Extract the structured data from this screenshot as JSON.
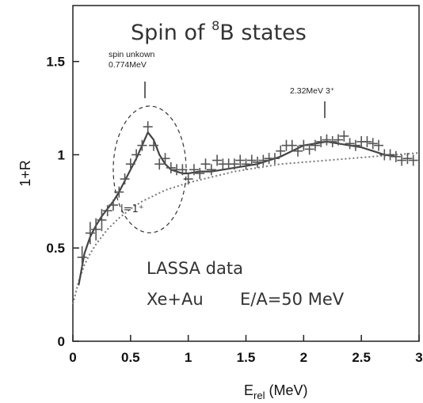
{
  "chart_data": {
    "type": "line",
    "title": "Spin of ",
    "title_sup": "8",
    "title_rest": "B states",
    "xlabel_main": "E",
    "xlabel_sub": "rel",
    "xlabel_unit": " (MeV)",
    "ylabel": "1+R",
    "xlim": [
      0,
      3
    ],
    "ylim": [
      0,
      1.8
    ],
    "xticks": [
      "0",
      "0.5",
      "1",
      "1.5",
      "2",
      "2.5",
      "3"
    ],
    "yticks": [
      "0",
      "0.5",
      "1",
      "1.5"
    ],
    "annotations": {
      "peak1_line1": "spin unkown",
      "peak1_line2": "0.774MeV",
      "peak2": "2.32MeV 3⁺",
      "l1": "l=1⁺",
      "lassa": "LASSA data",
      "reaction": "Xe+Au",
      "energy": "E/A=50 MeV"
    },
    "series": [
      {
        "style": "points",
        "x": [
          0.08,
          0.15,
          0.2,
          0.25,
          0.3,
          0.35,
          0.4,
          0.45,
          0.5,
          0.55,
          0.6,
          0.65,
          0.7,
          0.75,
          0.8,
          0.85,
          0.9,
          0.95,
          1.0,
          1.05,
          1.1,
          1.15,
          1.2,
          1.25,
          1.3,
          1.35,
          1.4,
          1.45,
          1.5,
          1.55,
          1.6,
          1.65,
          1.7,
          1.75,
          1.8,
          1.85,
          1.9,
          1.95,
          2.0,
          2.05,
          2.1,
          2.15,
          2.2,
          2.25,
          2.3,
          2.35,
          2.4,
          2.45,
          2.5,
          2.55,
          2.6,
          2.65,
          2.7,
          2.75,
          2.8,
          2.85,
          2.9,
          2.95
        ],
        "y": [
          0.45,
          0.58,
          0.6,
          0.65,
          0.7,
          0.73,
          0.8,
          0.87,
          0.95,
          1.0,
          1.05,
          1.15,
          1.05,
          0.95,
          0.98,
          0.93,
          0.92,
          0.92,
          0.87,
          0.92,
          0.9,
          0.95,
          0.92,
          0.97,
          0.95,
          0.95,
          0.95,
          0.97,
          0.95,
          0.97,
          0.96,
          0.97,
          0.98,
          0.98,
          1.02,
          1.05,
          1.05,
          1.02,
          1.05,
          1.03,
          1.05,
          1.07,
          1.08,
          1.07,
          1.08,
          1.1,
          1.06,
          1.05,
          1.07,
          1.07,
          1.06,
          1.05,
          1.0,
          1.0,
          0.99,
          0.97,
          0.98,
          0.97
        ]
      },
      {
        "style": "solid",
        "x": [
          0.05,
          0.1,
          0.15,
          0.2,
          0.25,
          0.3,
          0.35,
          0.4,
          0.45,
          0.5,
          0.55,
          0.6,
          0.65,
          0.7,
          0.75,
          0.8,
          0.85,
          0.9,
          0.95,
          1.0,
          1.1,
          1.2,
          1.3,
          1.4,
          1.5,
          1.6,
          1.7,
          1.8,
          1.9,
          2.0,
          2.1,
          2.2,
          2.3,
          2.4,
          2.5,
          2.6,
          2.7,
          2.8
        ],
        "y": [
          0.3,
          0.47,
          0.56,
          0.62,
          0.67,
          0.71,
          0.75,
          0.8,
          0.86,
          0.92,
          0.98,
          1.05,
          1.12,
          1.08,
          1.0,
          0.95,
          0.92,
          0.91,
          0.9,
          0.9,
          0.91,
          0.91,
          0.92,
          0.93,
          0.94,
          0.95,
          0.97,
          0.99,
          1.02,
          1.05,
          1.06,
          1.07,
          1.06,
          1.05,
          1.04,
          1.02,
          1.0,
          0.99
        ]
      },
      {
        "style": "dotted",
        "x": [
          0.0,
          0.05,
          0.1,
          0.15,
          0.2,
          0.3,
          0.4,
          0.5,
          0.6,
          0.7,
          0.8,
          0.9,
          1.0,
          1.2,
          1.4,
          1.6,
          1.8,
          2.0,
          2.2,
          2.4,
          2.6,
          2.8,
          3.0
        ],
        "y": [
          0.2,
          0.32,
          0.41,
          0.47,
          0.52,
          0.6,
          0.66,
          0.71,
          0.75,
          0.78,
          0.81,
          0.83,
          0.85,
          0.88,
          0.91,
          0.93,
          0.95,
          0.96,
          0.97,
          0.98,
          0.99,
          1.0,
          1.01
        ]
      }
    ]
  }
}
